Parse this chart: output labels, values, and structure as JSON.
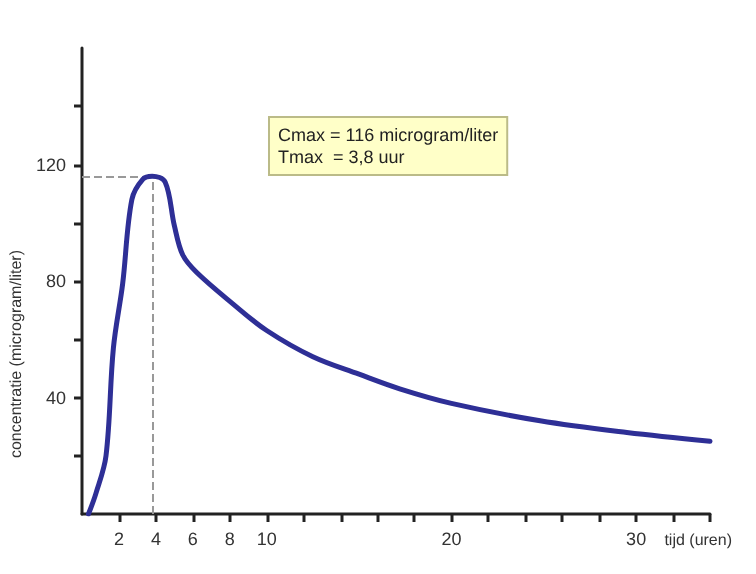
{
  "chart_data": {
    "type": "line",
    "xlabel": "tijd (uren)",
    "ylabel": "concentratie (microgram/liter)",
    "annotations": [
      "Cmax = 116 microgram/liter\nTmax  = 3,8 uur"
    ],
    "x": [
      0.35,
      0.75,
      1.3,
      1.7,
      2.2,
      2.7,
      3.3,
      3.8,
      4.5,
      5.0,
      5.45,
      6.2,
      8.2,
      10,
      12.5,
      15,
      17.2,
      20,
      24.8,
      29.5,
      34
    ],
    "series": [
      {
        "color": "#2e2f96",
        "values": [
          0,
          7,
          20,
          57,
          79,
          108,
          115,
          116,
          114,
          99,
          89,
          83,
          72,
          63,
          54,
          48,
          43,
          38,
          32,
          28,
          25
        ]
      }
    ],
    "xlim": [
      0,
      34
    ],
    "xticks": [
      2,
      4,
      6,
      8,
      10,
      {
        "value": 12,
        "label": null
      },
      {
        "value": 14,
        "label": null
      },
      {
        "value": 16,
        "label": null
      },
      {
        "value": 18,
        "label": null
      },
      20,
      {
        "value": 22,
        "label": null
      },
      {
        "value": 24,
        "label": null
      },
      {
        "value": 26,
        "label": null
      },
      {
        "value": 28,
        "label": null
      },
      30,
      {
        "value": 32,
        "label": null
      },
      {
        "value": 34,
        "label": null
      }
    ],
    "ylim": [
      0,
      160
    ],
    "yticks": [
      {
        "value": 20,
        "label": null
      },
      40,
      {
        "value": 60,
        "label": null
      },
      80,
      {
        "value": 100,
        "label": null
      },
      120,
      {
        "value": 140,
        "label": null
      }
    ],
    "ref_lines": [
      {
        "axis": "y",
        "value": 116,
        "color": "#999999",
        "line_style": "dashed"
      },
      {
        "axis": "x",
        "value": 3.8,
        "color": "#999999",
        "line_style": "dashed"
      }
    ],
    "grid": false,
    "marker": "none",
    "line_style": "solid"
  }
}
